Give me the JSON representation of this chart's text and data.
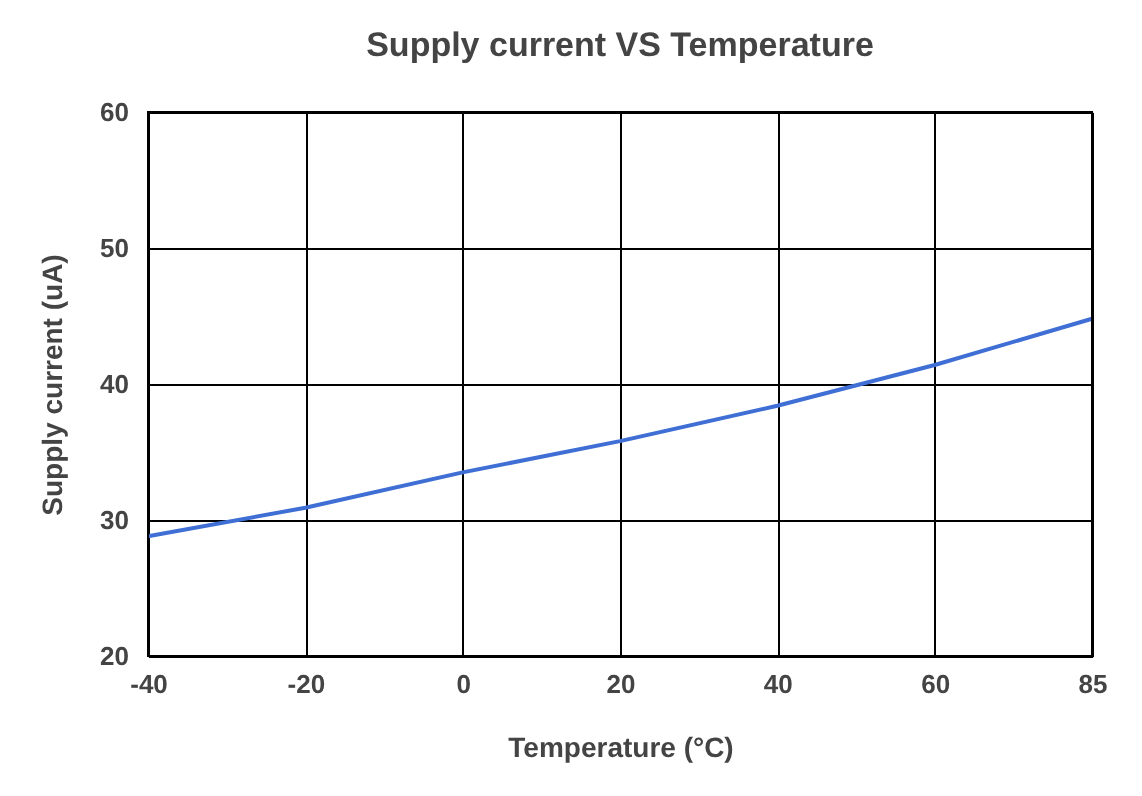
{
  "chart_data": {
    "type": "line",
    "title": "Supply current VS Temperature",
    "xlabel": "Temperature (°C)",
    "ylabel": "Supply current (uA)",
    "categories": [
      "-40",
      "-20",
      "0",
      "20",
      "40",
      "60",
      "85"
    ],
    "series": [
      {
        "color": "#3f6fd4",
        "values": [
          28.8,
          30.9,
          33.5,
          35.8,
          38.4,
          41.4,
          44.8
        ]
      }
    ],
    "ylim": [
      20,
      60
    ],
    "yticks": [
      20,
      30,
      40,
      50,
      60
    ],
    "grid": true,
    "marker": "none",
    "line_style": "solid"
  }
}
